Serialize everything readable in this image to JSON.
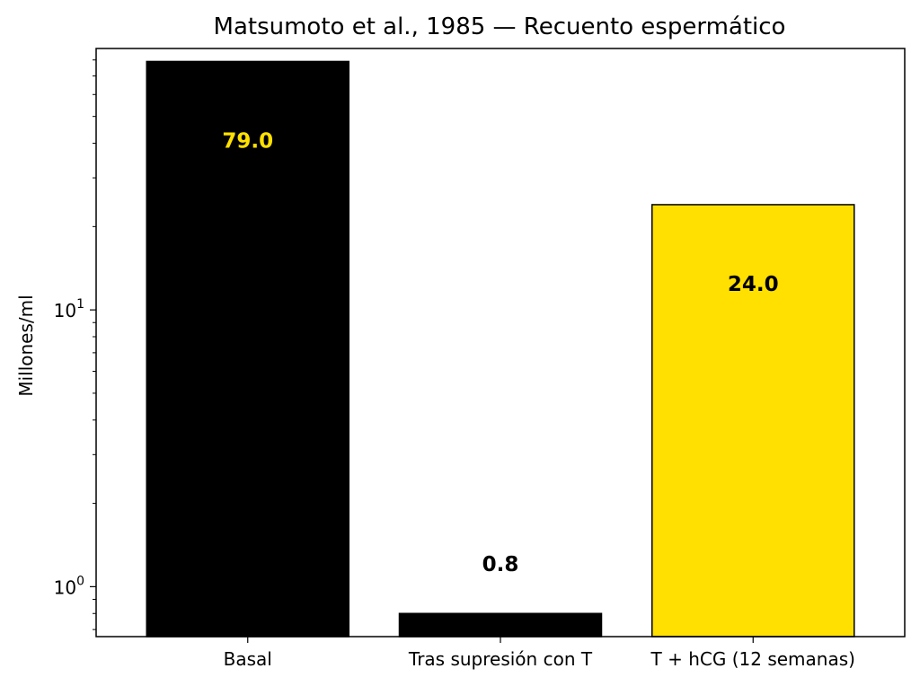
{
  "chart_data": {
    "type": "bar",
    "title": "Matsumoto et al., 1985 — Recuento espermático",
    "xlabel": "",
    "ylabel": "Millones/ml",
    "yscale": "log",
    "ylim": [
      0.66,
      88
    ],
    "grid": false,
    "categories": [
      "Basal",
      "Tras supresión con T",
      "T + hCG (12 semanas)"
    ],
    "values": [
      79.0,
      0.8,
      24.0
    ],
    "data_labels": [
      "79.0",
      "0.8",
      "24.0"
    ],
    "bar_colors": [
      "#000000",
      "#000000",
      "#FFE000"
    ],
    "label_colors": [
      "#FFE000",
      "#000000",
      "#000000"
    ],
    "y_ticks": [
      {
        "value": 1,
        "base": "10",
        "exp": "0"
      },
      {
        "value": 10,
        "base": "10",
        "exp": "1"
      }
    ]
  }
}
